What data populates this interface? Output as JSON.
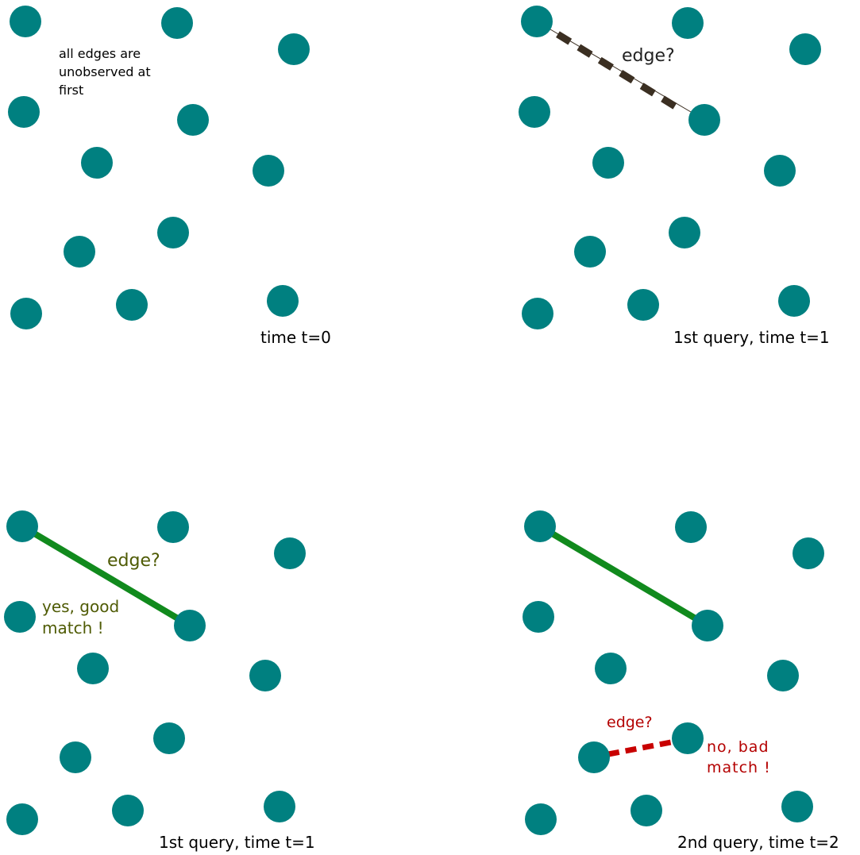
{
  "colors": {
    "node": "#008080",
    "unobserved_edge": "#3b2f22",
    "good_edge": "#118a1d",
    "bad_edge": "#c80000",
    "good_text": "#4f5b05",
    "bad_text": "#b40000",
    "text": "#000000",
    "edge_q_text": "#222222"
  },
  "panels": {
    "t0": {
      "note": [
        "all edges are",
        "unobserved at",
        "first"
      ],
      "caption": "time  t=0"
    },
    "t1_query": {
      "edge_label": "edge?",
      "caption": "1st query,  time  t=1"
    },
    "t1_result": {
      "edge_label": "edge?",
      "answer": [
        "yes, good",
        "match !"
      ],
      "caption": "1st query,  time  t=1"
    },
    "t2_query": {
      "edge_label": "edge?",
      "answer": [
        "no, bad",
        "match !"
      ],
      "caption": "2nd query, time  t=2"
    }
  }
}
